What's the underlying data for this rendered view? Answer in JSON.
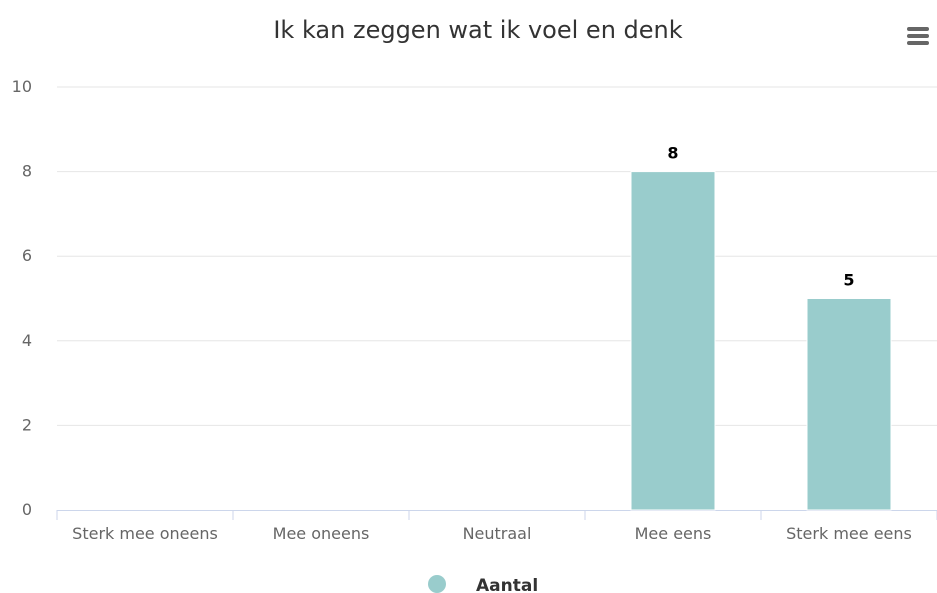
{
  "chart_data": {
    "type": "bar",
    "title": "Ik kan zeggen wat ik voel en denk",
    "categories": [
      "Sterk mee oneens",
      "Mee oneens",
      "Neutraal",
      "Mee eens",
      "Sterk mee eens"
    ],
    "series": [
      {
        "name": "Aantal",
        "values": [
          0,
          0,
          0,
          8,
          5
        ],
        "color": "#99CCCC"
      }
    ],
    "ylim": [
      0,
      10
    ],
    "yticks": [
      0,
      2,
      4,
      6,
      8,
      10
    ],
    "xlabel": "",
    "ylabel": "",
    "grid": true,
    "legend": "bottom-center",
    "data_labels": true
  },
  "menu": {
    "icon": "hamburger-menu-icon"
  }
}
